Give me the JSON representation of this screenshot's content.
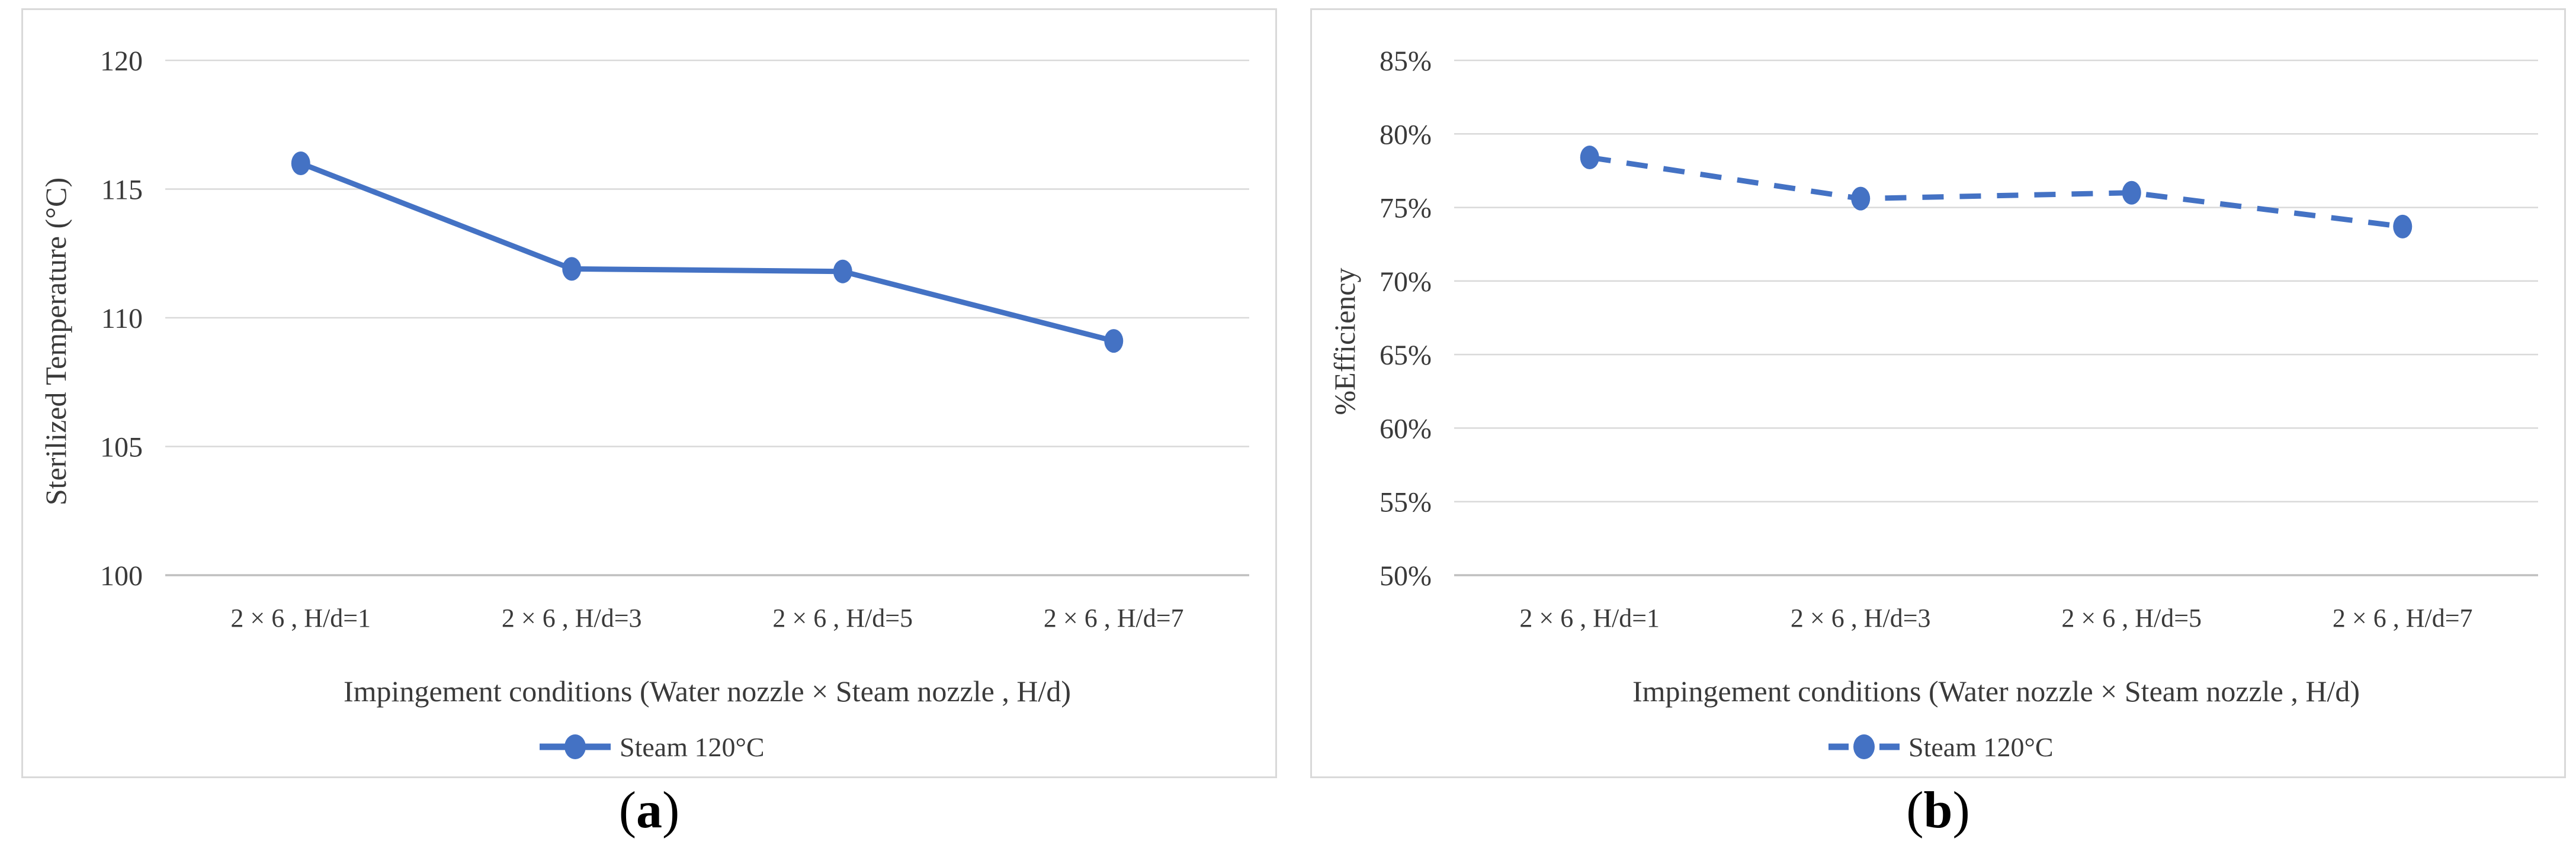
{
  "figure": {
    "background": "#FFFFFF",
    "captions": [
      {
        "pre": "(",
        "letter": "a",
        "post": ")"
      },
      {
        "pre": "(",
        "letter": "b",
        "post": ")"
      }
    ],
    "colors": {
      "series_blue": "#4472C4",
      "gridline": "#D9D9D9",
      "baseline": "#BFBFBF",
      "text": "#3A3A3A",
      "panel_border": "#D9D9D9"
    }
  },
  "chart_data": [
    {
      "type": "line",
      "panel": "a",
      "categories": [
        "2 × 6 , H/d=1",
        "2 × 6 , H/d=3",
        "2 × 6 , H/d=5",
        "2 × 6 , H/d=7"
      ],
      "series": [
        {
          "name": "Steam 120°C",
          "values": [
            116,
            111.9,
            111.8,
            109.1
          ],
          "line_style": "solid",
          "marker": "circle",
          "color": "#4472C4"
        }
      ],
      "xlabel": "Impingement conditions (Water nozzle × Steam nozzle , H/d)",
      "ylabel": "Sterilized Temperature (°C)",
      "ylim": [
        100,
        120
      ],
      "ytick_step": 5,
      "ytick_suffix": "",
      "grid": true,
      "legend_position": "bottom"
    },
    {
      "type": "line",
      "panel": "b",
      "categories": [
        "2 × 6 , H/d=1",
        "2 × 6 , H/d=3",
        "2 × 6 , H/d=5",
        "2 × 6 , H/d=7"
      ],
      "series": [
        {
          "name": "Steam 120°C",
          "values": [
            78.4,
            75.6,
            76,
            73.7
          ],
          "line_style": "dashed",
          "marker": "circle",
          "color": "#4472C4"
        }
      ],
      "xlabel": "Impingement conditions (Water nozzle × Steam nozzle , H/d)",
      "ylabel": "%Efficiency",
      "ylim": [
        50,
        85
      ],
      "ytick_step": 5,
      "ytick_suffix": "%",
      "grid": true,
      "legend_position": "bottom"
    }
  ]
}
